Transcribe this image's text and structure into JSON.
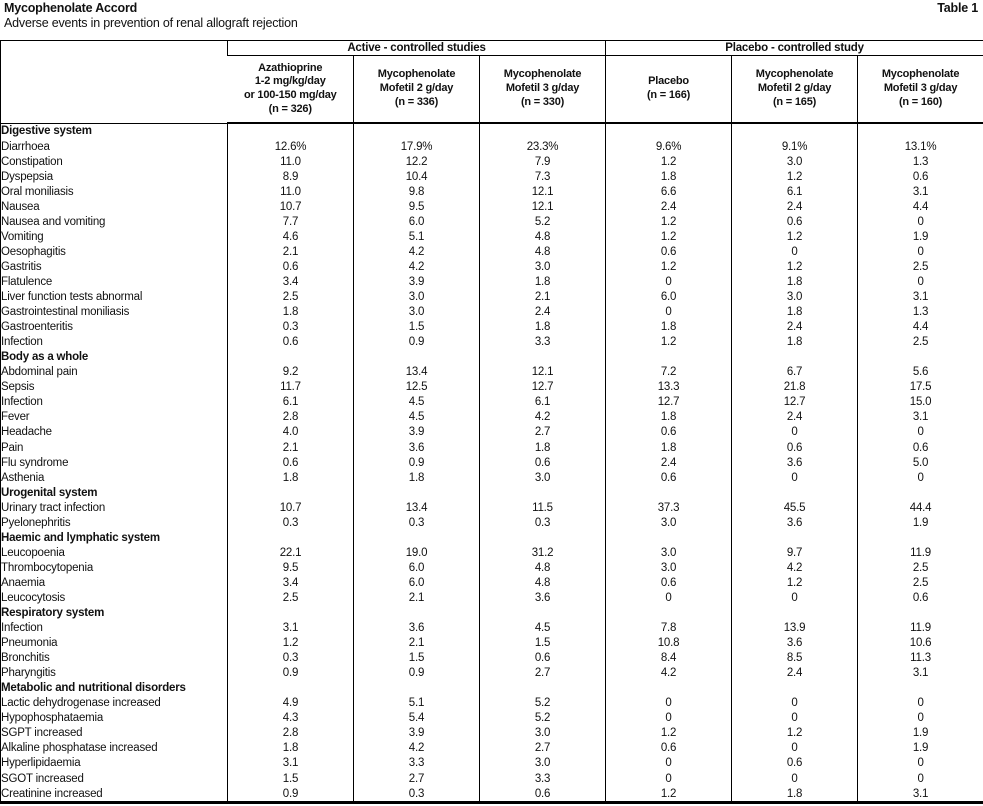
{
  "header": {
    "title": "Mycophenolate Accord",
    "subtitle": "Adverse events in prevention of renal allograft rejection",
    "table_label": "Table 1"
  },
  "table": {
    "group_headers": [
      {
        "label": "Active - controlled studies",
        "span": 3
      },
      {
        "label": "Placebo - controlled study",
        "span": 3
      }
    ],
    "column_headers": [
      [
        "Azathioprine",
        "1-2 mg/kg/day",
        "or 100-150 mg/day",
        "(n = 326)"
      ],
      [
        "Mycophenolate",
        "Mofetil 2 g/day",
        "(n = 336)"
      ],
      [
        "Mycophenolate",
        "Mofetil 3 g/day",
        "(n = 330)"
      ],
      [
        "Placebo",
        "(n = 166)"
      ],
      [
        "Mycophenolate",
        "Mofetil 2 g/day",
        "(n = 165)"
      ],
      [
        "Mycophenolate",
        "Mofetil 3 g/day",
        "(n = 160)"
      ]
    ],
    "sections": [
      {
        "title": "Digestive system",
        "rows": [
          {
            "label": "Diarrhoea",
            "values": [
              "12.6%",
              "17.9%",
              "23.3%",
              "9.6%",
              "9.1%",
              "13.1%"
            ]
          },
          {
            "label": "Constipation",
            "values": [
              "11.0",
              "12.2",
              "7.9",
              "1.2",
              "3.0",
              "1.3"
            ]
          },
          {
            "label": "Dyspepsia",
            "values": [
              "8.9",
              "10.4",
              "7.3",
              "1.8",
              "1.2",
              "0.6"
            ]
          },
          {
            "label": "Oral moniliasis",
            "values": [
              "11.0",
              "9.8",
              "12.1",
              "6.6",
              "6.1",
              "3.1"
            ]
          },
          {
            "label": "Nausea",
            "values": [
              "10.7",
              "9.5",
              "12.1",
              "2.4",
              "2.4",
              "4.4"
            ]
          },
          {
            "label": "Nausea and vomiting",
            "values": [
              "7.7",
              "6.0",
              "5.2",
              "1.2",
              "0.6",
              "0"
            ]
          },
          {
            "label": "Vomiting",
            "values": [
              "4.6",
              "5.1",
              "4.8",
              "1.2",
              "1.2",
              "1.9"
            ]
          },
          {
            "label": "Oesophagitis",
            "values": [
              "2.1",
              "4.2",
              "4.8",
              "0.6",
              "0",
              "0"
            ]
          },
          {
            "label": "Gastritis",
            "values": [
              "0.6",
              "4.2",
              "3.0",
              "1.2",
              "1.2",
              "2.5"
            ]
          },
          {
            "label": "Flatulence",
            "values": [
              "3.4",
              "3.9",
              "1.8",
              "0",
              "1.8",
              "0"
            ]
          },
          {
            "label": "Liver function tests abnormal",
            "values": [
              "2.5",
              "3.0",
              "2.1",
              "6.0",
              "3.0",
              "3.1"
            ]
          },
          {
            "label": "Gastrointestinal moniliasis",
            "values": [
              "1.8",
              "3.0",
              "2.4",
              "0",
              "1.8",
              "1.3"
            ]
          },
          {
            "label": "Gastroenteritis",
            "values": [
              "0.3",
              "1.5",
              "1.8",
              "1.8",
              "2.4",
              "4.4"
            ]
          },
          {
            "label": "Infection",
            "values": [
              "0.6",
              "0.9",
              "3.3",
              "1.2",
              "1.8",
              "2.5"
            ]
          }
        ]
      },
      {
        "title": "Body as a whole",
        "rows": [
          {
            "label": "Abdominal pain",
            "values": [
              "9.2",
              "13.4",
              "12.1",
              "7.2",
              "6.7",
              "5.6"
            ]
          },
          {
            "label": "Sepsis",
            "values": [
              "11.7",
              "12.5",
              "12.7",
              "13.3",
              "21.8",
              "17.5"
            ]
          },
          {
            "label": "Infection",
            "values": [
              "6.1",
              "4.5",
              "6.1",
              "12.7",
              "12.7",
              "15.0"
            ]
          },
          {
            "label": "Fever",
            "values": [
              "2.8",
              "4.5",
              "4.2",
              "1.8",
              "2.4",
              "3.1"
            ]
          },
          {
            "label": "Headache",
            "values": [
              "4.0",
              "3.9",
              "2.7",
              "0.6",
              "0",
              "0"
            ]
          },
          {
            "label": "Pain",
            "values": [
              "2.1",
              "3.6",
              "1.8",
              "1.8",
              "0.6",
              "0.6"
            ]
          },
          {
            "label": "Flu syndrome",
            "values": [
              "0.6",
              "0.9",
              "0.6",
              "2.4",
              "3.6",
              "5.0"
            ]
          },
          {
            "label": "Asthenia",
            "values": [
              "1.8",
              "1.8",
              "3.0",
              "0.6",
              "0",
              "0"
            ]
          }
        ]
      },
      {
        "title": "Urogenital system",
        "rows": [
          {
            "label": "Urinary tract infection",
            "values": [
              "10.7",
              "13.4",
              "11.5",
              "37.3",
              "45.5",
              "44.4"
            ]
          },
          {
            "label": "Pyelonephritis",
            "values": [
              "0.3",
              "0.3",
              "0.3",
              "3.0",
              "3.6",
              "1.9"
            ]
          }
        ]
      },
      {
        "title": "Haemic and lymphatic system",
        "rows": [
          {
            "label": "Leucopoenia",
            "values": [
              "22.1",
              "19.0",
              "31.2",
              "3.0",
              "9.7",
              "11.9"
            ]
          },
          {
            "label": "Thrombocytopenia",
            "values": [
              "9.5",
              "6.0",
              "4.8",
              "3.0",
              "4.2",
              "2.5"
            ]
          },
          {
            "label": "Anaemia",
            "values": [
              "3.4",
              "6.0",
              "4.8",
              "0.6",
              "1.2",
              "2.5"
            ]
          },
          {
            "label": "Leucocytosis",
            "values": [
              "2.5",
              "2.1",
              "3.6",
              "0",
              "0",
              "0.6"
            ]
          }
        ]
      },
      {
        "title": "Respiratory system",
        "rows": [
          {
            "label": "Infection",
            "values": [
              "3.1",
              "3.6",
              "4.5",
              "7.8",
              "13.9",
              "11.9"
            ]
          },
          {
            "label": "Pneumonia",
            "values": [
              "1.2",
              "2.1",
              "1.5",
              "10.8",
              "3.6",
              "10.6"
            ]
          },
          {
            "label": "Bronchitis",
            "values": [
              "0.3",
              "1.5",
              "0.6",
              "8.4",
              "8.5",
              "11.3"
            ]
          },
          {
            "label": "Pharyngitis",
            "values": [
              "0.9",
              "0.9",
              "2.7",
              "4.2",
              "2.4",
              "3.1"
            ]
          }
        ]
      },
      {
        "title": "Metabolic and nutritional disorders",
        "rows": [
          {
            "label": "Lactic dehydrogenase increased",
            "values": [
              "4.9",
              "5.1",
              "5.2",
              "0",
              "0",
              "0"
            ]
          },
          {
            "label": "Hypophosphataemia",
            "values": [
              "4.3",
              "5.4",
              "5.2",
              "0",
              "0",
              "0"
            ]
          },
          {
            "label": "SGPT increased",
            "values": [
              "2.8",
              "3.9",
              "3.0",
              "1.2",
              "1.2",
              "1.9"
            ]
          },
          {
            "label": "Alkaline phosphatase increased",
            "values": [
              "1.8",
              "4.2",
              "2.7",
              "0.6",
              "0",
              "1.9"
            ]
          },
          {
            "label": "Hyperlipidaemia",
            "values": [
              "3.1",
              "3.3",
              "3.0",
              "0",
              "0.6",
              "0"
            ]
          },
          {
            "label": "SGOT increased",
            "values": [
              "1.5",
              "2.7",
              "3.3",
              "0",
              "0",
              "0"
            ]
          },
          {
            "label": "Creatinine increased",
            "values": [
              "0.9",
              "0.3",
              "0.6",
              "1.2",
              "1.8",
              "3.1"
            ]
          }
        ]
      }
    ]
  }
}
